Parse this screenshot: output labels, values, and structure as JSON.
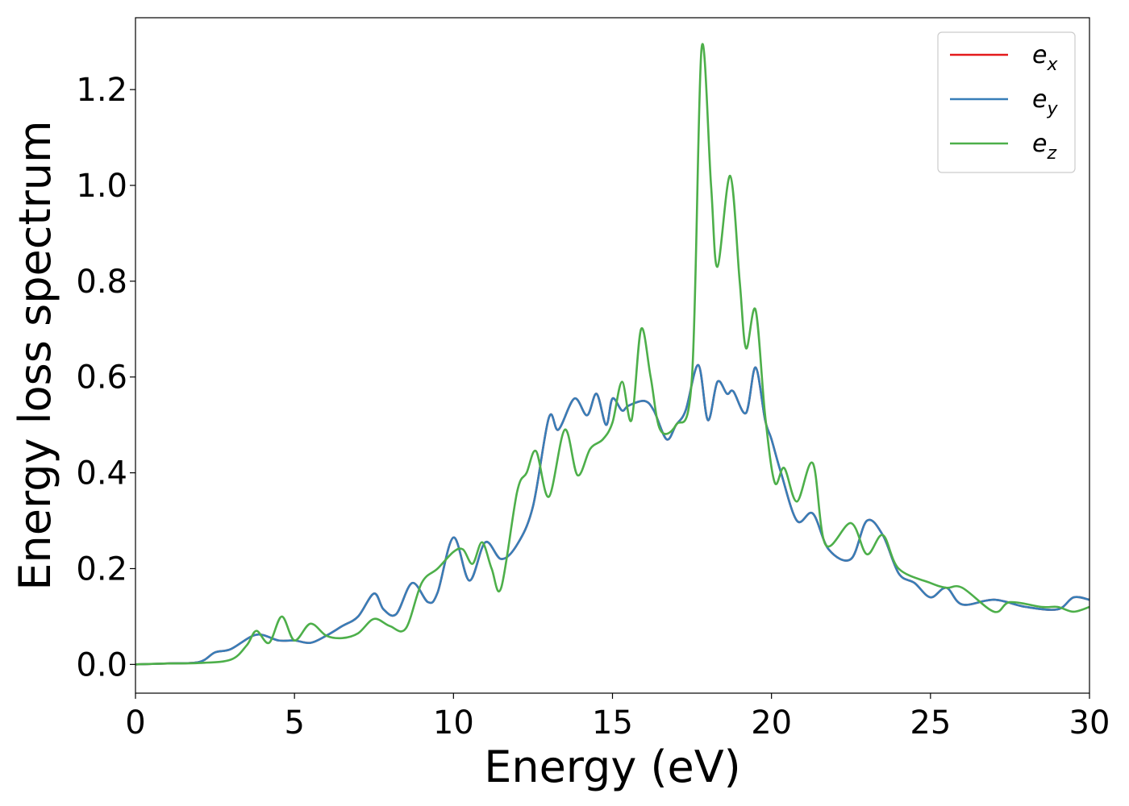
{
  "chart_data": {
    "type": "line",
    "title": "",
    "xlabel": "Energy (eV)",
    "ylabel": "Energy loss spectrum",
    "xlim": [
      0,
      30
    ],
    "ylim": [
      -0.06,
      1.35
    ],
    "xticks": [
      "0",
      "5",
      "10",
      "15",
      "20",
      "25",
      "30"
    ],
    "yticks": [
      "0.0",
      "0.2",
      "0.4",
      "0.6",
      "0.8",
      "1.0",
      "1.2"
    ],
    "grid": false,
    "legend_position": "top-right",
    "series": [
      {
        "name": "e_x",
        "label_base": "e",
        "label_sub": "x",
        "color": "#e41a1c",
        "x": [
          0,
          1,
          2,
          2.5,
          3,
          3.8,
          4.5,
          5,
          5.5,
          6,
          6.5,
          7,
          7.5,
          7.8,
          8.2,
          8.7,
          9.2,
          9.5,
          10,
          10.5,
          11,
          11.5,
          12,
          12.5,
          13,
          13.3,
          13.8,
          14.2,
          14.5,
          14.8,
          15,
          15.3,
          15.5,
          16,
          16.3,
          16.7,
          17,
          17.3,
          17.7,
          18,
          18.3,
          18.6,
          18.8,
          19.2,
          19.5,
          19.8,
          20,
          20.3,
          20.8,
          21.3,
          21.8,
          22.5,
          23,
          23.5,
          24,
          24.5,
          25,
          25.5,
          26,
          27,
          28,
          29,
          29.5,
          30
        ],
        "y": [
          0,
          0.002,
          0.005,
          0.025,
          0.032,
          0.062,
          0.05,
          0.05,
          0.045,
          0.06,
          0.08,
          0.1,
          0.148,
          0.115,
          0.105,
          0.17,
          0.13,
          0.15,
          0.265,
          0.175,
          0.255,
          0.22,
          0.25,
          0.33,
          0.515,
          0.49,
          0.555,
          0.52,
          0.565,
          0.5,
          0.555,
          0.53,
          0.54,
          0.55,
          0.53,
          0.47,
          0.5,
          0.53,
          0.625,
          0.51,
          0.59,
          0.565,
          0.57,
          0.525,
          0.62,
          0.51,
          0.47,
          0.4,
          0.3,
          0.315,
          0.24,
          0.22,
          0.3,
          0.27,
          0.19,
          0.17,
          0.14,
          0.16,
          0.125,
          0.135,
          0.12,
          0.115,
          0.14,
          0.135
        ]
      },
      {
        "name": "e_y",
        "label_base": "e",
        "label_sub": "y",
        "color": "#377eb8",
        "x": [
          0,
          1,
          2,
          2.5,
          3,
          3.8,
          4.5,
          5,
          5.5,
          6,
          6.5,
          7,
          7.5,
          7.8,
          8.2,
          8.7,
          9.2,
          9.5,
          10,
          10.5,
          11,
          11.5,
          12,
          12.5,
          13,
          13.3,
          13.8,
          14.2,
          14.5,
          14.8,
          15,
          15.3,
          15.5,
          16,
          16.3,
          16.7,
          17,
          17.3,
          17.7,
          18,
          18.3,
          18.6,
          18.8,
          19.2,
          19.5,
          19.8,
          20,
          20.3,
          20.8,
          21.3,
          21.8,
          22.5,
          23,
          23.5,
          24,
          24.5,
          25,
          25.5,
          26,
          27,
          28,
          29,
          29.5,
          30
        ],
        "y": [
          0,
          0.002,
          0.005,
          0.025,
          0.032,
          0.062,
          0.05,
          0.05,
          0.045,
          0.06,
          0.08,
          0.1,
          0.148,
          0.115,
          0.105,
          0.17,
          0.13,
          0.15,
          0.265,
          0.175,
          0.255,
          0.22,
          0.25,
          0.33,
          0.515,
          0.49,
          0.555,
          0.52,
          0.565,
          0.5,
          0.555,
          0.53,
          0.54,
          0.55,
          0.53,
          0.47,
          0.5,
          0.53,
          0.625,
          0.51,
          0.59,
          0.565,
          0.57,
          0.525,
          0.62,
          0.51,
          0.47,
          0.4,
          0.3,
          0.315,
          0.24,
          0.22,
          0.3,
          0.27,
          0.19,
          0.17,
          0.14,
          0.16,
          0.125,
          0.135,
          0.12,
          0.115,
          0.14,
          0.135
        ]
      },
      {
        "name": "e_z",
        "label_base": "e",
        "label_sub": "z",
        "color": "#4daf4a",
        "x": [
          0,
          1,
          2,
          3,
          3.5,
          3.8,
          4.2,
          4.6,
          5,
          5.5,
          6,
          6.5,
          7,
          7.5,
          8,
          8.5,
          9,
          9.5,
          10,
          10.3,
          10.6,
          10.9,
          11.2,
          11.5,
          12,
          12.3,
          12.6,
          13,
          13.5,
          13.9,
          14.3,
          14.7,
          15,
          15.3,
          15.6,
          15.9,
          16.2,
          16.5,
          17,
          17.5,
          17.8,
          18.1,
          18.3,
          18.7,
          19.0,
          19.2,
          19.5,
          19.8,
          20.1,
          20.4,
          20.8,
          21.3,
          21.7,
          22.5,
          23,
          23.5,
          24,
          25,
          25.5,
          26,
          27,
          27.5,
          28.5,
          29,
          29.5,
          30
        ],
        "y": [
          0,
          0.002,
          0.003,
          0.01,
          0.04,
          0.07,
          0.045,
          0.1,
          0.05,
          0.085,
          0.06,
          0.055,
          0.065,
          0.095,
          0.08,
          0.075,
          0.17,
          0.2,
          0.235,
          0.24,
          0.21,
          0.255,
          0.2,
          0.16,
          0.36,
          0.4,
          0.445,
          0.35,
          0.49,
          0.395,
          0.45,
          0.47,
          0.505,
          0.59,
          0.51,
          0.7,
          0.6,
          0.49,
          0.5,
          0.6,
          1.285,
          1.0,
          0.83,
          1.02,
          0.8,
          0.66,
          0.74,
          0.52,
          0.38,
          0.41,
          0.34,
          0.42,
          0.25,
          0.295,
          0.23,
          0.27,
          0.2,
          0.17,
          0.16,
          0.16,
          0.11,
          0.13,
          0.12,
          0.12,
          0.11,
          0.12
        ]
      }
    ]
  }
}
